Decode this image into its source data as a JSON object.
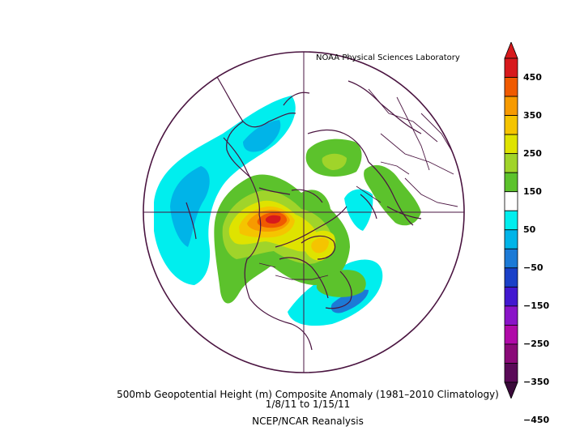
{
  "credit": "NOAA Physical Sciences Laboratory",
  "caption": {
    "title": "500mb Geopotential Height (m) Composite Anomaly (1981–2010 Climatology)",
    "dates": "1/8/11   to 1/15/11",
    "source": "NCEP/NCAR Reanalysis"
  },
  "colorbar": {
    "labels": [
      "450",
      "350",
      "250",
      "150",
      "50",
      "−50",
      "−150",
      "−250",
      "−350",
      "−450"
    ],
    "colors": [
      "#d7191c",
      "#f05a00",
      "#f79a00",
      "#f5c400",
      "#dfe300",
      "#a0d42a",
      "#5cc22c",
      "#ffffff",
      "#00eeee",
      "#00b4e8",
      "#1c7ad6",
      "#1a40c8",
      "#4218d0",
      "#8a14c8",
      "#b00aa8",
      "#8a0a78",
      "#5a0a58"
    ],
    "arrow_top_color": "#d7191c",
    "arrow_bottom_color": "#3a0a3a"
  },
  "map": {
    "boundary_color": "#4a1440",
    "coast_color": "#4a1440"
  }
}
